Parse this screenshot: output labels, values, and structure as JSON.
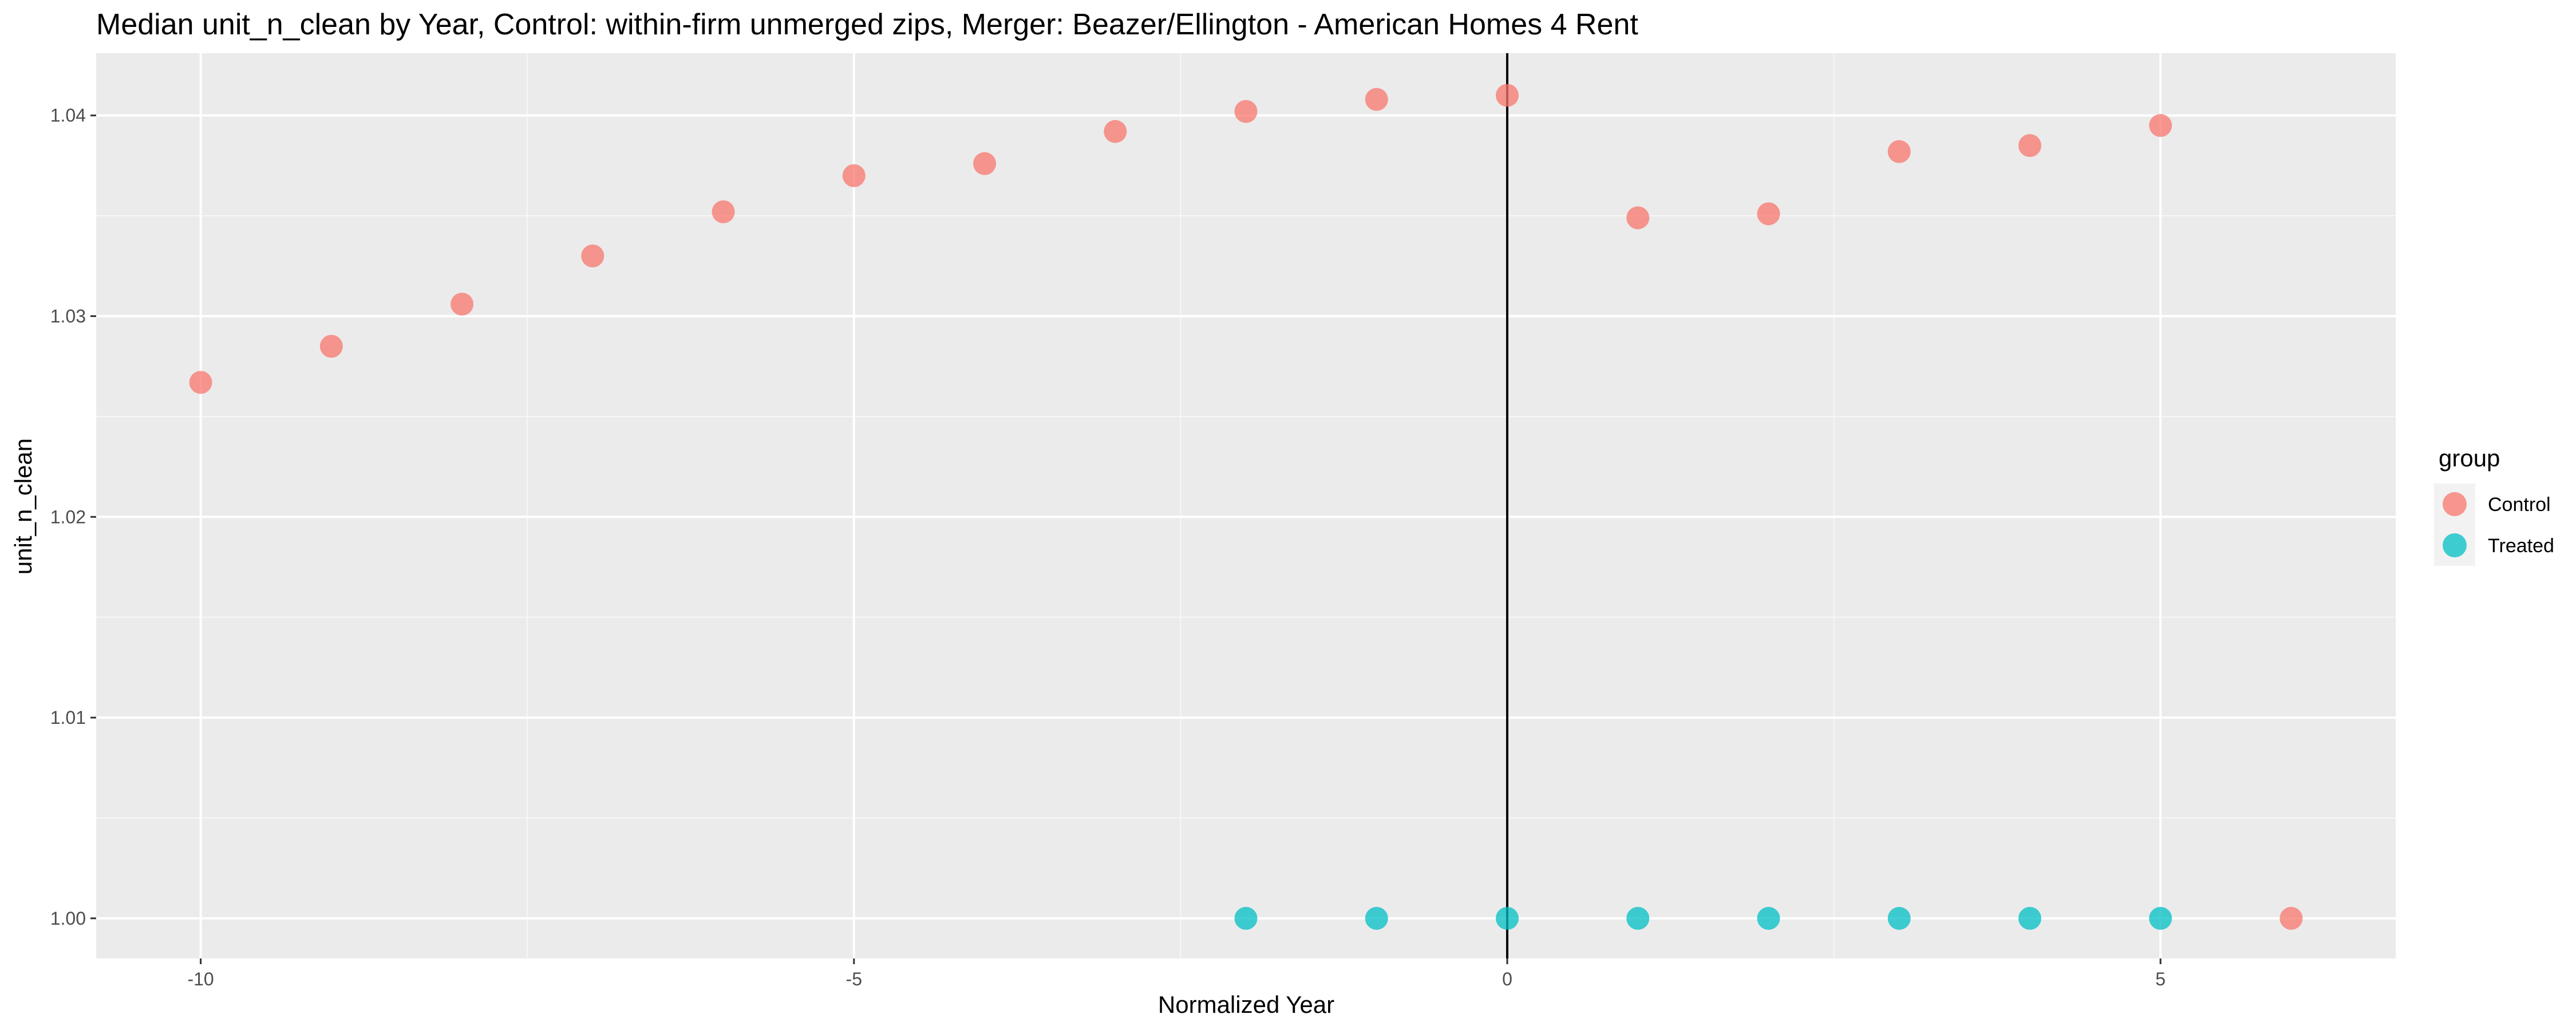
{
  "chart_data": {
    "type": "scatter",
    "title": "Median unit_n_clean by Year, Control: within-firm unmerged zips, Merger: Beazer/Ellington - American Homes 4 Rent",
    "xlabel": "Normalized Year",
    "ylabel": "unit_n_clean",
    "xlim": [
      -10.8,
      6.8
    ],
    "ylim": [
      0.998,
      1.0431
    ],
    "x_ticks": [
      -10,
      -5,
      0,
      5
    ],
    "x_tick_labels": [
      "-10",
      "-5",
      "0",
      "5"
    ],
    "y_ticks": [
      1.0,
      1.01,
      1.02,
      1.03,
      1.04
    ],
    "y_tick_labels": [
      "1.00",
      "1.01",
      "1.02",
      "1.03",
      "1.04"
    ],
    "grid": true,
    "vline_x": 0,
    "legend": {
      "title": "group",
      "position": "right"
    },
    "series": [
      {
        "name": "Control",
        "color": "#F8766D",
        "points": [
          [
            -10,
            1.0267
          ],
          [
            -9,
            1.0285
          ],
          [
            -8,
            1.0306
          ],
          [
            -7,
            1.033
          ],
          [
            -6,
            1.0352
          ],
          [
            -5,
            1.037
          ],
          [
            -4,
            1.0376
          ],
          [
            -3,
            1.0392
          ],
          [
            -2,
            1.0402
          ],
          [
            -1,
            1.0408
          ],
          [
            0,
            1.041
          ],
          [
            1,
            1.0349
          ],
          [
            2,
            1.0351
          ],
          [
            3,
            1.0382
          ],
          [
            4,
            1.0385
          ],
          [
            5,
            1.0395
          ],
          [
            6,
            1.0
          ]
        ]
      },
      {
        "name": "Treated",
        "color": "#00BFC4",
        "points": [
          [
            -2,
            1.0
          ],
          [
            -1,
            1.0
          ],
          [
            0,
            1.0
          ],
          [
            1,
            1.0
          ],
          [
            2,
            1.0
          ],
          [
            3,
            1.0
          ],
          [
            4,
            1.0
          ],
          [
            5,
            1.0
          ]
        ]
      }
    ]
  }
}
